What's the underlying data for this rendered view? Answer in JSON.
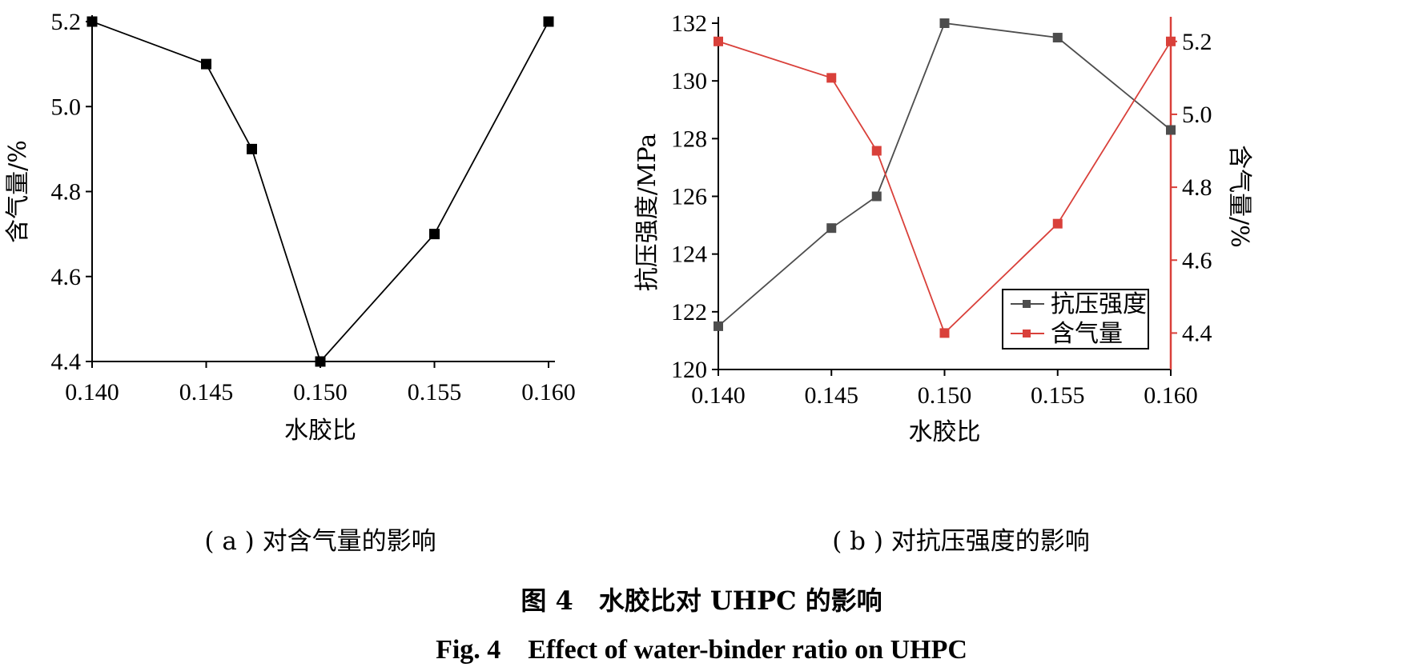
{
  "figure": {
    "title_cn": "图 4　水胶比对 UHPC 的影响",
    "title_en": "Fig. 4　Effect of water-binder ratio on UHPC"
  },
  "colors": {
    "black": "#000000",
    "dark_series": "#4d4d4d",
    "red_series": "#d9403a"
  },
  "chart_data": [
    {
      "id": "a",
      "type": "line",
      "caption": "( a ) 对含气量的影响",
      "xlabel": "水胶比",
      "ylabel": "含气量/%",
      "xlim": [
        0.14,
        0.16
      ],
      "ylim": [
        4.4,
        5.2
      ],
      "x_ticks": [
        "0.140",
        "0.145",
        "0.150",
        "0.155",
        "0.160"
      ],
      "y_ticks": [
        "4.4",
        "4.6",
        "4.8",
        "5.0",
        "5.2"
      ],
      "series": [
        {
          "x": [
            0.14,
            0.145,
            0.147,
            0.15,
            0.155,
            0.16
          ],
          "values": [
            5.2,
            5.1,
            4.9,
            4.4,
            4.7,
            5.2
          ]
        }
      ]
    },
    {
      "id": "b",
      "type": "line",
      "caption": "( b ) 对抗压强度的影响",
      "xlabel": "水胶比",
      "ylabel": "抗压强度/MPa",
      "ylabel_right": "含气量/%",
      "xlim": [
        0.14,
        0.16
      ],
      "ylim": [
        120,
        132
      ],
      "ylim_right": [
        4.3,
        5.25
      ],
      "x_ticks": [
        "0.140",
        "0.145",
        "0.150",
        "0.155",
        "0.160"
      ],
      "y_ticks": [
        "120",
        "122",
        "124",
        "126",
        "128",
        "130",
        "132"
      ],
      "y_ticks_right": [
        "4.4",
        "4.6",
        "4.8",
        "5.0",
        "5.2"
      ],
      "legend_position": "lower-right",
      "series": [
        {
          "name": "抗压强度",
          "axis": "left",
          "x": [
            0.14,
            0.145,
            0.147,
            0.15,
            0.155,
            0.16
          ],
          "values": [
            121.5,
            124.9,
            126.0,
            132.0,
            131.5,
            128.3
          ]
        },
        {
          "name": "含气量",
          "axis": "right",
          "x": [
            0.14,
            0.145,
            0.147,
            0.15,
            0.155,
            0.16
          ],
          "values": [
            5.2,
            5.1,
            4.9,
            4.4,
            4.7,
            5.2
          ]
        }
      ]
    }
  ]
}
